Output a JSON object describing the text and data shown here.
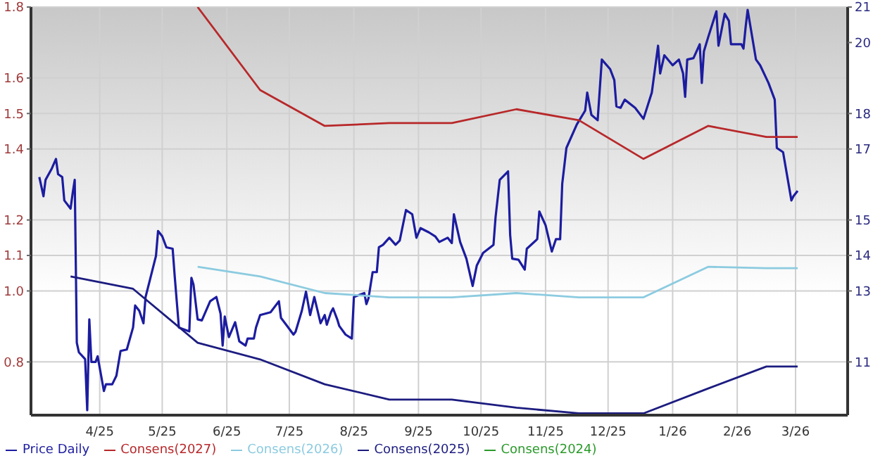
{
  "chart_data": {
    "type": "line",
    "xlim": [
      "2025-03-13",
      "2026-04-09"
    ],
    "xticks": [
      {
        "value": "2025-04-15",
        "label": "4/25"
      },
      {
        "value": "2025-05-15",
        "label": "5/25"
      },
      {
        "value": "2025-06-15",
        "label": "6/25"
      },
      {
        "value": "2025-07-15",
        "label": "7/25"
      },
      {
        "value": "2025-08-15",
        "label": "8/25"
      },
      {
        "value": "2025-09-15",
        "label": "9/25"
      },
      {
        "value": "2025-10-15",
        "label": "10/25"
      },
      {
        "value": "2025-11-15",
        "label": "11/25"
      },
      {
        "value": "2025-12-15",
        "label": "12/25"
      },
      {
        "value": "2026-01-15",
        "label": "1/26"
      },
      {
        "value": "2026-02-15",
        "label": "2/26"
      },
      {
        "value": "2026-03-15",
        "label": "3/26"
      }
    ],
    "ylim": [
      0.65,
      1.8
    ],
    "yticks": [
      0.8,
      {
        "value": 1,
        "label": "1.0"
      },
      1.1,
      1.2,
      1.4,
      1.5,
      1.6,
      1.8
    ],
    "y2lim": [
      9.5,
      21
    ],
    "y2ticks": [
      11,
      13,
      14,
      15,
      17,
      18,
      20,
      21
    ],
    "grid": true,
    "legend": "bottom",
    "series": [
      {
        "name": "Price Daily",
        "color": "#1c1ca0",
        "axis": "y2",
        "x": [
          "2025-03-17",
          "2025-03-19",
          "2025-03-20",
          "2025-03-23",
          "2025-03-25",
          "2025-03-26",
          "2025-03-28",
          "2025-03-29",
          "2025-04-01",
          "2025-04-02",
          "2025-04-03",
          "2025-04-04",
          "2025-04-05",
          "2025-04-08",
          "2025-04-09",
          "2025-04-10",
          "2025-04-11",
          "2025-04-13",
          "2025-04-14",
          "2025-04-17",
          "2025-04-18",
          "2025-04-21",
          "2025-04-23",
          "2025-04-25",
          "2025-04-28",
          "2025-05-01",
          "2025-05-02",
          "2025-05-04",
          "2025-05-06",
          "2025-05-07",
          "2025-05-09",
          "2025-05-12",
          "2025-05-13",
          "2025-05-15",
          "2025-05-17",
          "2025-05-20",
          "2025-05-21",
          "2025-05-23",
          "2025-05-28",
          "2025-05-29",
          "2025-05-30",
          "2025-06-01",
          "2025-06-03",
          "2025-06-07",
          "2025-06-10",
          "2025-06-12",
          "2025-06-13",
          "2025-06-14",
          "2025-06-16",
          "2025-06-19",
          "2025-06-21",
          "2025-06-24",
          "2025-06-25",
          "2025-06-28",
          "2025-06-29",
          "2025-07-01",
          "2025-07-06",
          "2025-07-10",
          "2025-07-11",
          "2025-07-14",
          "2025-07-17",
          "2025-07-18",
          "2025-07-21",
          "2025-07-23",
          "2025-07-25",
          "2025-07-27",
          "2025-07-30",
          "2025-08-01",
          "2025-08-02",
          "2025-08-04",
          "2025-08-05",
          "2025-08-07",
          "2025-08-08",
          "2025-08-11",
          "2025-08-14",
          "2025-08-15",
          "2025-08-20",
          "2025-08-21",
          "2025-08-22",
          "2025-08-24",
          "2025-08-26",
          "2025-08-27",
          "2025-08-29",
          "2025-09-01",
          "2025-09-04",
          "2025-09-06",
          "2025-09-09",
          "2025-09-12",
          "2025-09-14",
          "2025-09-16",
          "2025-09-20",
          "2025-09-23",
          "2025-09-25",
          "2025-09-29",
          "2025-10-01",
          "2025-10-02",
          "2025-10-05",
          "2025-10-08",
          "2025-10-11",
          "2025-10-13",
          "2025-10-16",
          "2025-10-21",
          "2025-10-22",
          "2025-10-24",
          "2025-10-28",
          "2025-10-29",
          "2025-10-30",
          "2025-11-02",
          "2025-11-05",
          "2025-11-06",
          "2025-11-11",
          "2025-11-12",
          "2025-11-15",
          "2025-11-18",
          "2025-11-20",
          "2025-11-22",
          "2025-11-23",
          "2025-11-25",
          "2025-11-30",
          "2025-12-04",
          "2025-12-05",
          "2025-12-07",
          "2025-12-10",
          "2025-12-12",
          "2025-12-16",
          "2025-12-18",
          "2025-12-19",
          "2025-12-21",
          "2025-12-23",
          "2025-12-28",
          "2026-01-01",
          "2026-01-05",
          "2026-01-08",
          "2026-01-09",
          "2026-01-11",
          "2026-01-15",
          "2026-01-18",
          "2026-01-20",
          "2026-01-21",
          "2026-01-22",
          "2026-01-25",
          "2026-01-28",
          "2026-01-29",
          "2026-01-30",
          "2026-02-01",
          "2026-02-05",
          "2026-02-06",
          "2026-02-09",
          "2026-02-11",
          "2026-02-12",
          "2026-02-17",
          "2026-02-18",
          "2026-02-19",
          "2026-02-20",
          "2026-02-24",
          "2026-02-26",
          "2026-03-02",
          "2026-03-05",
          "2026-03-06",
          "2026-03-09",
          "2026-03-13",
          "2026-03-14",
          "2026-03-16"
        ],
        "values": [
          16.21,
          15.67,
          16.13,
          16.45,
          16.72,
          16.29,
          16.21,
          15.55,
          15.32,
          15.75,
          16.13,
          11.54,
          11.27,
          11.08,
          9.64,
          12.2,
          11.0,
          11.0,
          11.16,
          10.18,
          10.37,
          10.37,
          10.61,
          11.31,
          11.35,
          11.97,
          12.59,
          12.44,
          12.09,
          12.83,
          13.29,
          13.99,
          14.69,
          14.54,
          14.23,
          14.19,
          13.41,
          11.97,
          11.86,
          13.37,
          13.18,
          12.2,
          12.17,
          12.71,
          12.83,
          12.36,
          11.46,
          12.28,
          11.7,
          12.12,
          11.58,
          11.46,
          11.66,
          11.66,
          11.97,
          12.32,
          12.4,
          12.71,
          12.24,
          12.01,
          11.77,
          11.85,
          12.44,
          12.98,
          12.32,
          12.83,
          12.09,
          12.32,
          12.05,
          12.4,
          12.51,
          12.2,
          12.01,
          11.77,
          11.66,
          12.83,
          12.94,
          12.63,
          12.79,
          13.53,
          13.53,
          14.23,
          14.3,
          14.5,
          14.3,
          14.42,
          15.28,
          15.16,
          14.5,
          14.77,
          14.65,
          14.54,
          14.38,
          14.5,
          14.35,
          15.16,
          14.38,
          13.91,
          13.14,
          13.72,
          14.07,
          14.3,
          15.08,
          16.13,
          16.37,
          14.58,
          13.91,
          13.88,
          13.6,
          14.19,
          14.46,
          15.24,
          14.85,
          14.11,
          14.46,
          14.46,
          16.02,
          17.03,
          17.69,
          18.08,
          18.59,
          17.96,
          17.81,
          19.52,
          19.25,
          18.94,
          18.2,
          18.16,
          18.39,
          18.16,
          17.85,
          18.59,
          19.91,
          19.13,
          19.64,
          19.36,
          19.52,
          19.13,
          18.47,
          19.52,
          19.56,
          19.95,
          18.86,
          19.75,
          20.14,
          20.88,
          19.91,
          20.81,
          20.61,
          19.95,
          19.95,
          19.83,
          20.42,
          20.92,
          19.52,
          19.36,
          18.86,
          18.39,
          17.03,
          16.91,
          15.55,
          15.67,
          15.82
        ]
      },
      {
        "name": "Consens(2027)",
        "color": "#b8282a",
        "axis": "y",
        "x": [
          "2025-06-01",
          "2025-07-01",
          "2025-08-01",
          "2025-09-01",
          "2025-10-01",
          "2025-11-01",
          "2025-12-01",
          "2026-01-01",
          "2026-02-01",
          "2026-03-01",
          "2026-03-16"
        ],
        "values": [
          1.8,
          1.566,
          1.465,
          1.473,
          1.473,
          1.512,
          1.481,
          1.372,
          1.465,
          1.434,
          1.434
        ]
      },
      {
        "name": "Consens(2026)",
        "color": "#8ccbe0",
        "axis": "y",
        "x": [
          "2025-06-01",
          "2025-07-01",
          "2025-08-01",
          "2025-09-01",
          "2025-10-01",
          "2025-11-01",
          "2025-12-01",
          "2026-01-01",
          "2026-02-01",
          "2026-03-01",
          "2026-03-16"
        ],
        "values": [
          1.068,
          1.041,
          0.994,
          0.982,
          0.982,
          0.994,
          0.982,
          0.982,
          1.068,
          1.064,
          1.064
        ]
      },
      {
        "name": "Consens(2025)",
        "color": "#1c1c80",
        "axis": "y",
        "x": [
          "2025-04-01",
          "2025-05-01",
          "2025-06-01",
          "2025-07-01",
          "2025-08-01",
          "2025-09-01",
          "2025-10-01",
          "2025-11-01",
          "2025-12-01",
          "2026-01-01",
          "2026-02-01",
          "2026-03-01",
          "2026-03-16"
        ],
        "values": [
          1.041,
          1.006,
          0.854,
          0.807,
          0.737,
          0.694,
          0.694,
          0.671,
          0.655,
          0.655,
          0.725,
          0.787,
          0.787
        ]
      },
      {
        "name": "Consens(2024)",
        "color": "#2a9a2a",
        "axis": "y"
      }
    ]
  }
}
